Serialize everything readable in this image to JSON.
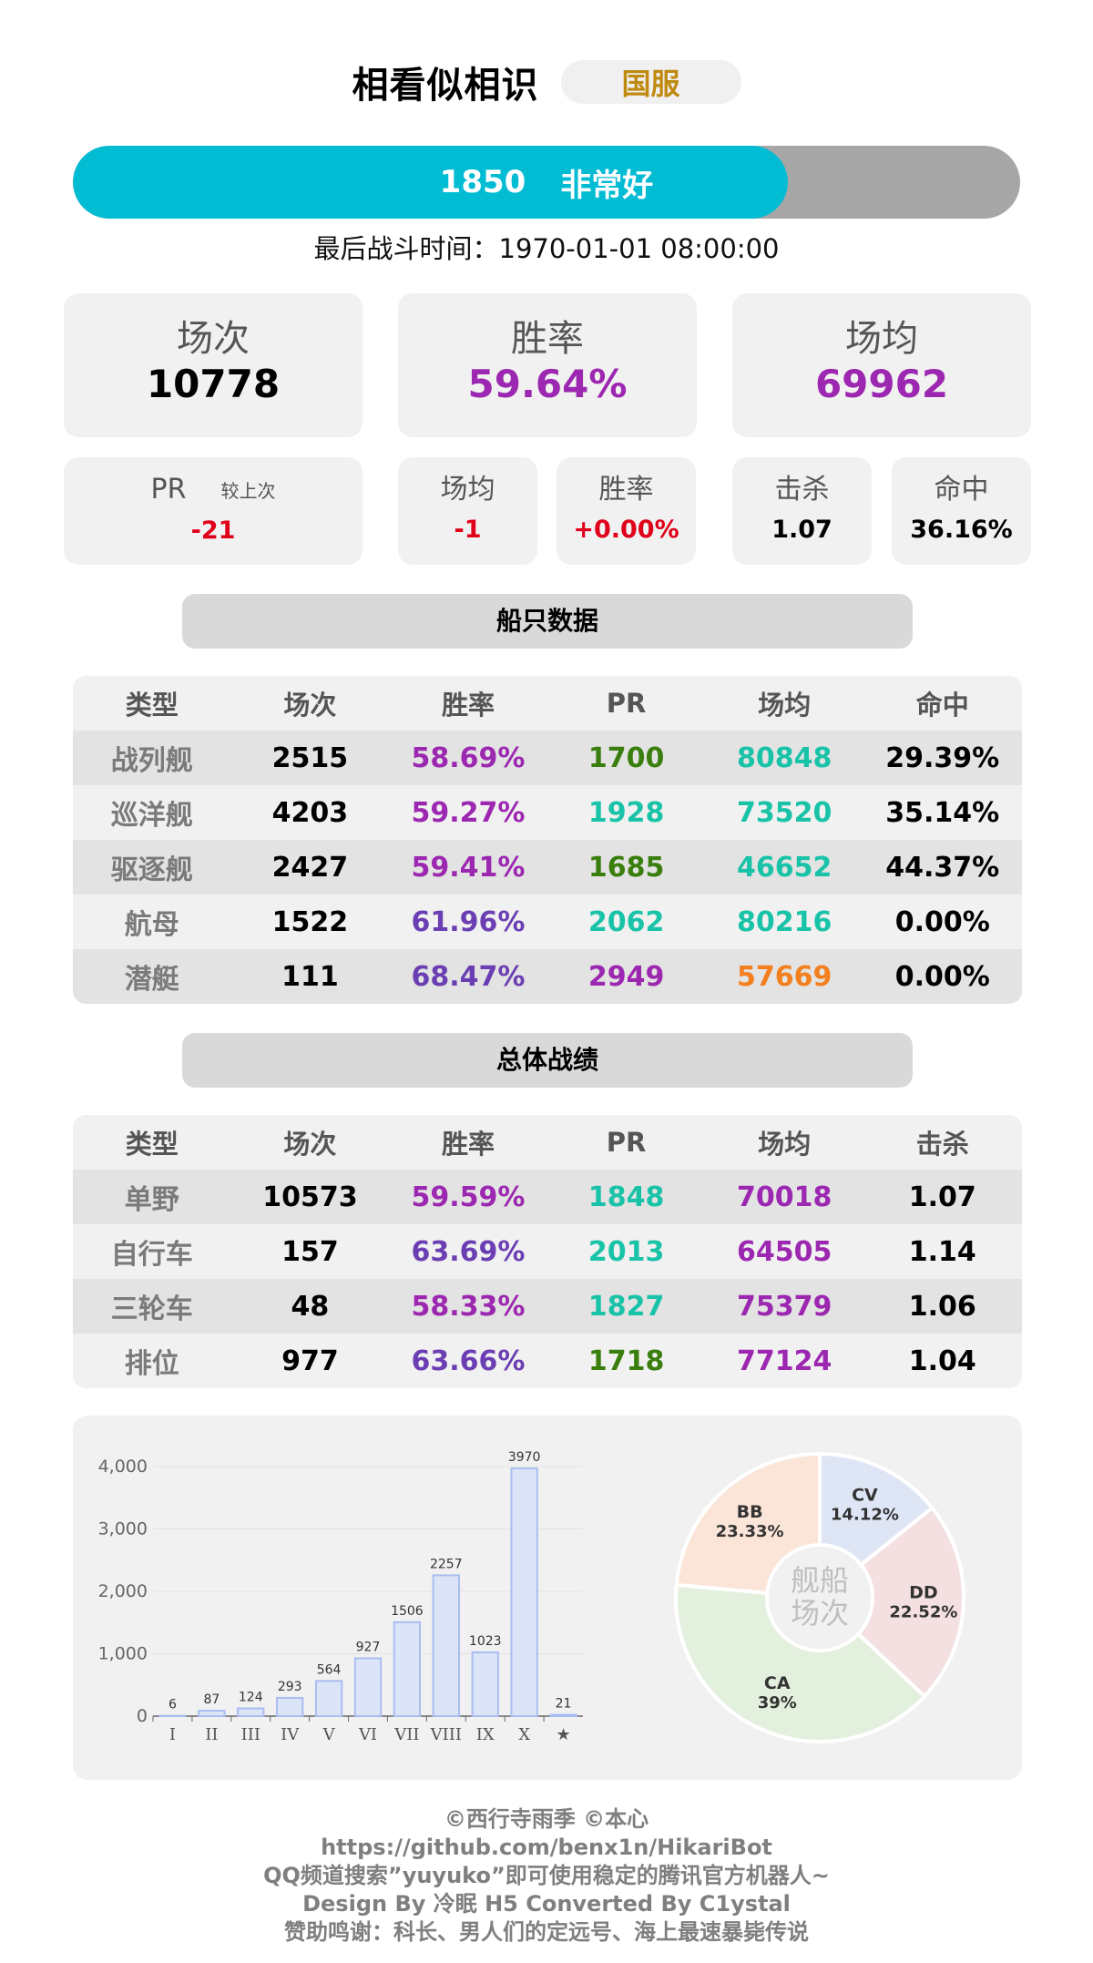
{
  "header": {
    "player_name": "相看似相识",
    "server": "国服"
  },
  "pr_bar": {
    "value": "1850",
    "rating": "非常好",
    "fill_fraction": 0.755,
    "fill_color": "#02bcd4",
    "bg_color": "#a6a6a6"
  },
  "last_battle": "最后战斗时间：1970-01-01 08:00:00",
  "summary": {
    "battles": {
      "label": "场次",
      "value": "10778"
    },
    "winrate": {
      "label": "胜率",
      "value": "59.64%",
      "color": "#9c27b0"
    },
    "avg_damage": {
      "label": "场均",
      "value": "69962",
      "color": "#9c27b0"
    }
  },
  "compare": {
    "pr": {
      "label": "PR",
      "sub": "较上次",
      "value": "-21"
    },
    "damage": {
      "label": "场均",
      "value": "-1"
    },
    "winrate": {
      "label": "胜率",
      "value": "+0.00%"
    },
    "kills": {
      "label": "击杀",
      "value": "1.07"
    },
    "hit": {
      "label": "命中",
      "value": "36.16%"
    },
    "negative_color": "#e0001a"
  },
  "ship_section": {
    "title": "船只数据",
    "headers": [
      "类型",
      "场次",
      "胜率",
      "PR",
      "场均",
      "命中"
    ],
    "rows": [
      {
        "cells": [
          "战列舰",
          "2515",
          "58.69%",
          "1700",
          "80848",
          "29.39%"
        ],
        "colors": [
          "",
          "",
          "#9c27b0",
          "#3a7f0d",
          "#19c3a8",
          ""
        ]
      },
      {
        "cells": [
          "巡洋舰",
          "4203",
          "59.27%",
          "1928",
          "73520",
          "35.14%"
        ],
        "colors": [
          "",
          "",
          "#9c27b0",
          "#19c3a8",
          "#19c3a8",
          ""
        ]
      },
      {
        "cells": [
          "驱逐舰",
          "2427",
          "59.41%",
          "1685",
          "46652",
          "44.37%"
        ],
        "colors": [
          "",
          "",
          "#9c27b0",
          "#3a7f0d",
          "#19c3a8",
          ""
        ]
      },
      {
        "cells": [
          "航母",
          "1522",
          "61.96%",
          "2062",
          "80216",
          "0.00%"
        ],
        "colors": [
          "",
          "",
          "#6b3fb3",
          "#19c3a8",
          "#19c3a8",
          ""
        ]
      },
      {
        "cells": [
          "潜艇",
          "111",
          "68.47%",
          "2949",
          "57669",
          "0.00%"
        ],
        "colors": [
          "",
          "",
          "#6b3fb3",
          "#9c27b0",
          "#f37f1e",
          ""
        ]
      }
    ]
  },
  "overall_section": {
    "title": "总体战绩",
    "headers": [
      "类型",
      "场次",
      "胜率",
      "PR",
      "场均",
      "击杀"
    ],
    "rows": [
      {
        "cells": [
          "单野",
          "10573",
          "59.59%",
          "1848",
          "70018",
          "1.07"
        ],
        "colors": [
          "",
          "",
          "#9c27b0",
          "#19c3a8",
          "#9c27b0",
          ""
        ]
      },
      {
        "cells": [
          "自行车",
          "157",
          "63.69%",
          "2013",
          "64505",
          "1.14"
        ],
        "colors": [
          "",
          "",
          "#6b3fb3",
          "#19c3a8",
          "#9c27b0",
          ""
        ]
      },
      {
        "cells": [
          "三轮车",
          "48",
          "58.33%",
          "1827",
          "75379",
          "1.06"
        ],
        "colors": [
          "",
          "",
          "#9c27b0",
          "#19c3a8",
          "#9c27b0",
          ""
        ]
      },
      {
        "cells": [
          "排位",
          "977",
          "63.66%",
          "1718",
          "77124",
          "1.04"
        ],
        "colors": [
          "",
          "",
          "#6b3fb3",
          "#3a7f0d",
          "#9c27b0",
          ""
        ]
      }
    ]
  },
  "chart_data": [
    {
      "type": "bar",
      "categories": [
        "I",
        "II",
        "III",
        "IV",
        "V",
        "VI",
        "VII",
        "VIII",
        "IX",
        "X",
        "★"
      ],
      "values": [
        6,
        87,
        124,
        293,
        564,
        927,
        1506,
        2257,
        1023,
        3970,
        21
      ],
      "ylim": [
        0,
        4000
      ],
      "yticks": [
        "0",
        "1,000",
        "2,000",
        "3,000",
        "4,000"
      ],
      "bar_color": "#dce4f7",
      "bar_border": "#a9bdf0"
    },
    {
      "type": "pie",
      "center_label": [
        "舰船",
        "场次"
      ],
      "slices": [
        {
          "name": "CV",
          "percent": "14.12%",
          "value": 14.12,
          "color": "#dee5f5"
        },
        {
          "name": "DD",
          "percent": "22.52%",
          "value": 22.52,
          "color": "#f4e0e0"
        },
        {
          "name": "CA",
          "percent": "39%",
          "value": 39.0,
          "color": "#e3f0de"
        },
        {
          "name": "BB",
          "percent": "23.33%",
          "value": 23.33,
          "color": "#fae5d8"
        }
      ]
    }
  ],
  "footer": [
    "©西行寺雨季  ©本心",
    "https://github.com/benx1n/HikariBot",
    "QQ频道搜索”yuyuko”即可使用稳定的腾讯官方机器人~",
    "Design By 冷眠 H5 Converted By C1ystal",
    "赞助鸣谢：科长、男人们的定远号、海上最速暴毙传说"
  ]
}
